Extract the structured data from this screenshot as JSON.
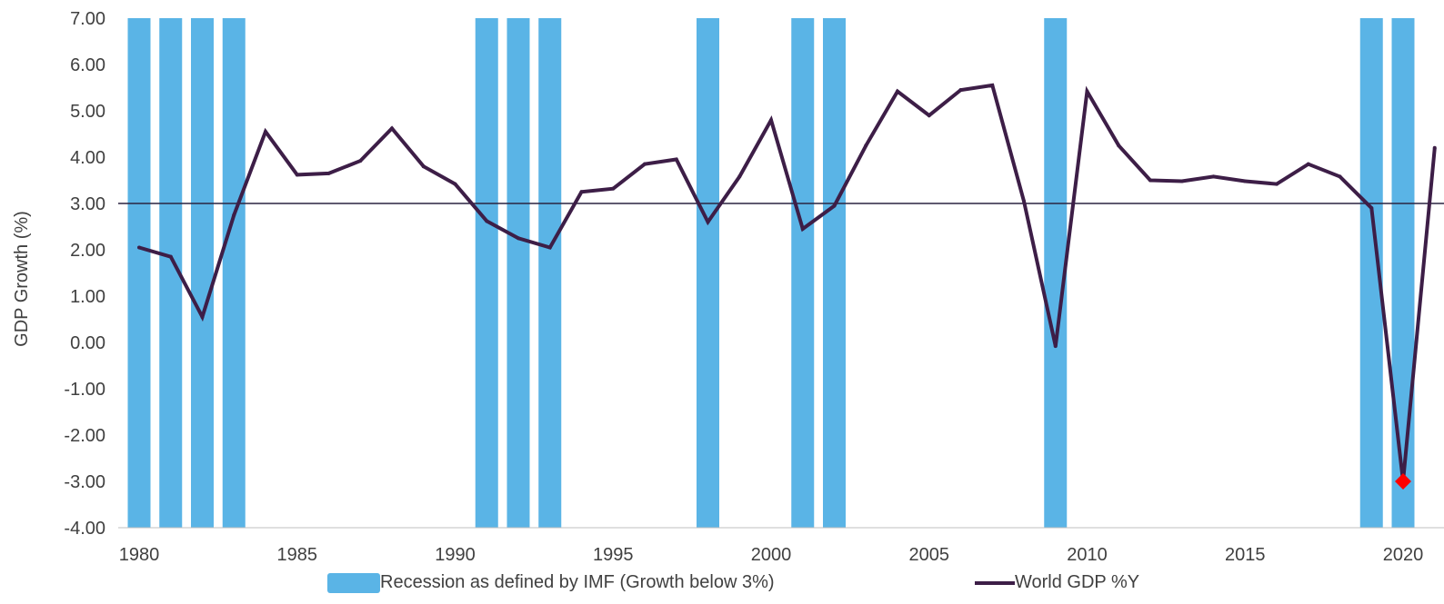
{
  "chart_data": {
    "type": "bar+line",
    "title": "",
    "xlabel": "",
    "ylabel": "GDP Growth (%)",
    "ylim": [
      -4,
      7
    ],
    "yticks": [
      "7.00",
      "6.00",
      "5.00",
      "4.00",
      "3.00",
      "2.00",
      "1.00",
      "0.00",
      "-1.00",
      "-2.00",
      "-3.00",
      "-4.00"
    ],
    "xticks": [
      "1980",
      "1985",
      "1990",
      "1995",
      "2000",
      "2005",
      "2010",
      "2015",
      "2020"
    ],
    "threshold": 3,
    "recession_years": [
      1980,
      1981,
      1982,
      1983,
      1991,
      1992,
      1993,
      1998,
      2001,
      2002,
      2009,
      2019,
      2020
    ],
    "series": [
      {
        "name": "World GDP %Y",
        "color": "#3d1e47",
        "x": [
          1980,
          1981,
          1982,
          1983,
          1984,
          1985,
          1986,
          1987,
          1988,
          1989,
          1990,
          1991,
          1992,
          1993,
          1994,
          1995,
          1996,
          1997,
          1998,
          1999,
          2000,
          2001,
          2002,
          2003,
          2004,
          2005,
          2006,
          2007,
          2008,
          2009,
          2010,
          2011,
          2012,
          2013,
          2014,
          2015,
          2016,
          2017,
          2018,
          2019,
          2020,
          2021
        ],
        "values": [
          2.05,
          1.85,
          0.55,
          2.75,
          4.55,
          3.62,
          3.65,
          3.92,
          4.62,
          3.8,
          3.42,
          2.62,
          2.25,
          2.05,
          3.25,
          3.32,
          3.85,
          3.95,
          2.6,
          3.58,
          4.8,
          2.45,
          2.95,
          4.25,
          5.42,
          4.9,
          5.45,
          5.55,
          3.05,
          -0.08,
          5.42,
          4.25,
          3.5,
          3.48,
          3.58,
          3.48,
          3.42,
          3.85,
          3.58,
          2.9,
          -3.0,
          4.2
        ]
      }
    ],
    "highlight_point": {
      "x": 2020,
      "y": -3.0,
      "color": "#ff0000"
    },
    "bar_color": "#5ab4e6",
    "legend": [
      {
        "label": "Recession as defined by IMF (Growth below 3%)",
        "kind": "bar"
      },
      {
        "label": "World GDP %Y",
        "kind": "line"
      }
    ],
    "legend_position": "bottom",
    "grid": false
  }
}
